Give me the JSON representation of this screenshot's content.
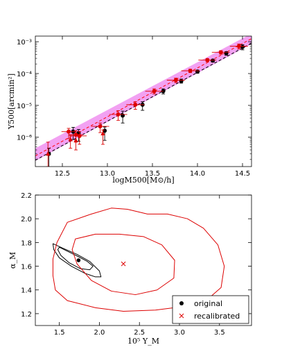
{
  "chart_data": [
    {
      "type": "scatter",
      "yscale": "log",
      "xlabel": "logM500[M⊙/h]",
      "ylabel": "Y500[arcmin²]",
      "xlim": [
        12.2,
        14.6
      ],
      "ylim": [
        1.2e-07,
        0.0015
      ],
      "xticks": [
        "12.5",
        "13.0",
        "13.5",
        "14.0",
        "14.5"
      ],
      "yticks": [
        "10⁻⁶",
        "10⁻⁵",
        "10⁻⁴",
        "10⁻³"
      ],
      "band": {
        "color": "#ee82ee",
        "x": [
          12.2,
          14.6
        ],
        "y_low": [
          1.8e-07,
          0.00085
        ],
        "y_high": [
          4.5e-07,
          0.0018
        ]
      },
      "lines": [
        {
          "style": "dashed",
          "color": "#000000",
          "x": [
            12.2,
            14.6
          ],
          "y": [
            1.9e-07,
            0.0009
          ]
        },
        {
          "style": "dashed",
          "color": "#ff0000",
          "x": [
            12.2,
            14.6
          ],
          "y": [
            2.6e-07,
            0.00125
          ]
        }
      ],
      "series": [
        {
          "marker": "circle",
          "color": "#000000",
          "x": [
            12.35,
            12.62,
            12.68,
            12.97,
            13.17,
            13.39,
            13.62,
            13.82,
            14.0,
            14.17,
            14.32,
            14.5
          ],
          "y": [
            3e-07,
            1.5e-06,
            1.35e-06,
            1.6e-06,
            4.8e-06,
            1.05e-05,
            2.8e-05,
            5.8e-05,
            0.000115,
            0.000255,
            0.000435,
            0.00068
          ],
          "yerr_low": [
            2e-07,
            6.5e-07,
            6e-07,
            8e-07,
            2e-06,
            3.5e-06,
            5e-06,
            8e-06,
            1.3e-05,
            2.6e-05,
            6e-05,
            0.000125
          ],
          "yerr_high": [
            1.5e-07,
            5.5e-07,
            4e-07,
            5e-07,
            1.8e-06,
            2.5e-06,
            5e-06,
            9e-06,
            1.3e-05,
            2.6e-05,
            5e-05,
            0.000125
          ]
        },
        {
          "marker": "circle",
          "color": "#dd0000",
          "x": [
            12.57,
            12.65,
            12.69,
            12.92,
            13.12,
            13.31,
            13.52,
            13.76,
            13.92,
            14.11,
            14.26,
            14.46
          ],
          "y": [
            1.5e-06,
            1.2e-06,
            1.1e-06,
            2.2e-06,
            5.2e-06,
            1.05e-05,
            2.8e-05,
            6.2e-05,
            0.000122,
            0.000265,
            0.000465,
            0.00072
          ],
          "xerr": [
            0.08,
            0.08,
            0.08,
            0.1,
            0.1,
            0.1,
            0.1,
            0.1,
            0.1,
            0.1,
            0.1,
            0.1
          ],
          "yerr_low": [
            6e-07,
            5e-07,
            5e-07,
            8e-07,
            1.8e-06,
            3e-06,
            5e-06,
            1e-05,
            1.5e-05,
            3e-05,
            6e-05,
            0.000128
          ],
          "yerr_high": [
            4e-07,
            4e-07,
            4e-07,
            6e-07,
            1.6e-06,
            2.5e-06,
            5e-06,
            1e-05,
            1.5e-05,
            3e-05,
            6e-05,
            0.000128
          ]
        },
        {
          "marker": "triangle",
          "color": "#dd0000",
          "x": [
            12.34,
            12.59,
            12.65,
            12.95
          ],
          "y": [
            3e-07,
            8.5e-07,
            8e-07,
            1.3e-06
          ],
          "yerr_low": [
            1.8e-07,
            4e-07,
            4e-07,
            7e-07
          ],
          "yerr_high": [
            4e-07,
            3e-07,
            3e-07,
            4e-07
          ]
        }
      ]
    },
    {
      "type": "scatter",
      "xlabel": "10⁵ Y_M",
      "ylabel": "α_M",
      "xlim": [
        1.2,
        3.9
      ],
      "ylim": [
        1.1,
        2.2
      ],
      "xticks": [
        "1.5",
        "2.0",
        "2.5",
        "3.0",
        "3.5"
      ],
      "yticks": [
        "1.2",
        "1.4",
        "1.6",
        "1.8",
        "2.0",
        "2.2"
      ],
      "legend_position": "lower-right",
      "legend": [
        "original",
        "recalibrated"
      ],
      "points": [
        {
          "name": "original",
          "marker": "dot",
          "color": "#000000",
          "x": 1.74,
          "y": 1.65
        },
        {
          "name": "recalibrated",
          "marker": "x",
          "color": "#dd0000",
          "x": 2.3,
          "y": 1.62
        }
      ],
      "contours": [
        {
          "color": "#000000",
          "points": [
            [
              1.5,
              1.76
            ],
            [
              1.62,
              1.72
            ],
            [
              1.74,
              1.68
            ],
            [
              1.85,
              1.64
            ],
            [
              1.92,
              1.6
            ],
            [
              1.88,
              1.57
            ],
            [
              1.76,
              1.58
            ],
            [
              1.62,
              1.63
            ],
            [
              1.52,
              1.69
            ],
            [
              1.48,
              1.74
            ]
          ]
        },
        {
          "color": "#000000",
          "points": [
            [
              1.42,
              1.79
            ],
            [
              1.55,
              1.75
            ],
            [
              1.72,
              1.7
            ],
            [
              1.88,
              1.64
            ],
            [
              2.0,
              1.56
            ],
            [
              2.02,
              1.51
            ],
            [
              1.95,
              1.51
            ],
            [
              1.82,
              1.54
            ],
            [
              1.65,
              1.6
            ],
            [
              1.5,
              1.67
            ],
            [
              1.43,
              1.74
            ]
          ]
        },
        {
          "color": "#dd0000",
          "points": [
            [
              1.7,
              1.83
            ],
            [
              1.95,
              1.87
            ],
            [
              2.25,
              1.87
            ],
            [
              2.55,
              1.85
            ],
            [
              2.78,
              1.78
            ],
            [
              2.94,
              1.65
            ],
            [
              2.93,
              1.5
            ],
            [
              2.72,
              1.4
            ],
            [
              2.45,
              1.36
            ],
            [
              2.15,
              1.39
            ],
            [
              1.9,
              1.48
            ],
            [
              1.72,
              1.62
            ],
            [
              1.66,
              1.74
            ]
          ]
        },
        {
          "color": "#dd0000",
          "points": [
            [
              1.6,
              1.97
            ],
            [
              1.9,
              2.04
            ],
            [
              2.15,
              2.09
            ],
            [
              2.35,
              2.08
            ],
            [
              2.6,
              2.04
            ],
            [
              2.85,
              2.04
            ],
            [
              3.1,
              2.0
            ],
            [
              3.3,
              1.92
            ],
            [
              3.48,
              1.78
            ],
            [
              3.56,
              1.6
            ],
            [
              3.52,
              1.42
            ],
            [
              3.35,
              1.32
            ],
            [
              3.05,
              1.26
            ],
            [
              2.7,
              1.23
            ],
            [
              2.3,
              1.22
            ],
            [
              1.95,
              1.25
            ],
            [
              1.6,
              1.31
            ],
            [
              1.45,
              1.4
            ],
            [
              1.42,
              1.52
            ],
            [
              1.42,
              1.66
            ],
            [
              1.47,
              1.8
            ]
          ]
        }
      ]
    }
  ]
}
